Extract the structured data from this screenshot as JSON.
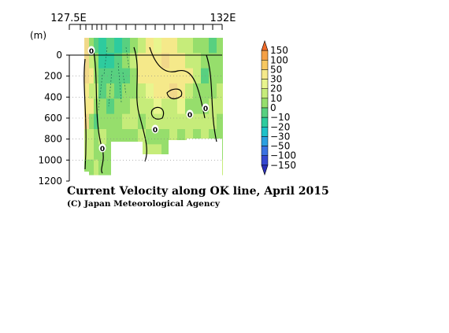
{
  "chart_data": {
    "type": "heatmap",
    "title": "Current Velocity along OK line, April 2015",
    "credit": "(C) Japan Meteorological Agency",
    "top_axis_labels": [
      "127.5E",
      "132E"
    ],
    "y_unit_label": "(m)",
    "y_ticks": [
      "0",
      "200",
      "400",
      "600",
      "800",
      "1000",
      "1200"
    ],
    "ylim": [
      0,
      1200
    ],
    "y_inverted": true,
    "colorbar": {
      "labels": [
        "150",
        "100",
        "50",
        "30",
        "20",
        "10",
        "0",
        "−10",
        "−20",
        "−30",
        "−50",
        "−100",
        "−150"
      ],
      "colors": [
        "#f06a28",
        "#f5a045",
        "#f7c860",
        "#f5e98a",
        "#e8f58e",
        "#c6ec7a",
        "#96de6c",
        "#58d080",
        "#2ecb9e",
        "#1fc1c8",
        "#2c9fe0",
        "#3b72e2",
        "#3547d0",
        "#2a2fb8"
      ]
    },
    "contour_labels": [
      "0",
      "0",
      "0",
      "0",
      "0"
    ],
    "grid": true
  }
}
